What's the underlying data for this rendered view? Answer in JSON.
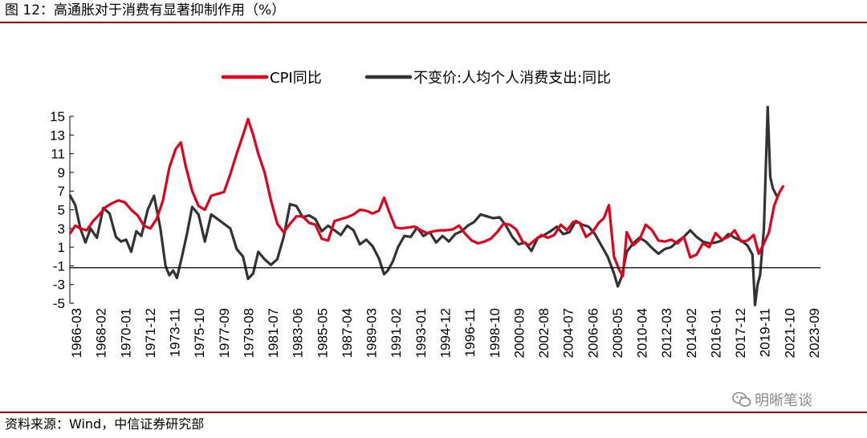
{
  "header": {
    "title": "图 12：高通胀对于消费有显著抑制作用（%）"
  },
  "footer": {
    "source": "资料来源：Wind，中信证券研究部",
    "watermark": "明晰笔谈"
  },
  "colors": {
    "accent": "#c00000",
    "cpi": "#e2001a",
    "consumption": "#333333"
  },
  "chart_data": {
    "type": "line",
    "title": "图 12：高通胀对于消费有显著抑制作用（%）",
    "ylim": [
      -5,
      15
    ],
    "yticks": [
      15,
      13,
      11,
      9,
      7,
      5,
      3,
      1,
      -1,
      -3,
      -5
    ],
    "xlim": [
      1966.17,
      2025.25
    ],
    "xtick_labels": [
      "1966-03",
      "1968-02",
      "1970-01",
      "1971-12",
      "1973-11",
      "1975-10",
      "1977-09",
      "1979-08",
      "1981-07",
      "1983-06",
      "1985-05",
      "1987-04",
      "1989-03",
      "1991-02",
      "1993-01",
      "1994-12",
      "1996-11",
      "1998-10",
      "2000-09",
      "2002-08",
      "2004-07",
      "2006-06",
      "2008-05",
      "2010-04",
      "2012-03",
      "2014-02",
      "2016-01",
      "2017-12",
      "2019-11",
      "2021-10",
      "2023-09"
    ],
    "legend": {
      "placement": "top-center",
      "entries": [
        "CPI同比",
        "不变价:人均个人消费支出:同比"
      ]
    },
    "series": [
      {
        "name": "CPI同比",
        "color": "#e2001a",
        "x": [
          1966.2,
          1966.6,
          1967.0,
          1967.5,
          1968.0,
          1968.5,
          1969.0,
          1969.5,
          1970.0,
          1970.5,
          1971.0,
          1971.5,
          1972.0,
          1972.5,
          1973.0,
          1973.5,
          1974.0,
          1974.5,
          1974.9,
          1975.3,
          1975.8,
          1976.3,
          1976.8,
          1977.3,
          1977.8,
          1978.3,
          1978.8,
          1979.3,
          1979.8,
          1980.2,
          1980.6,
          1981.0,
          1981.5,
          1982.0,
          1982.5,
          1983.0,
          1983.5,
          1984.0,
          1984.5,
          1985.0,
          1985.5,
          1986.0,
          1986.5,
          1987.0,
          1987.5,
          1988.0,
          1988.5,
          1989.0,
          1989.5,
          1990.0,
          1990.5,
          1990.9,
          1991.3,
          1991.8,
          1992.3,
          1992.8,
          1993.3,
          1993.8,
          1994.3,
          1994.8,
          1995.3,
          1995.8,
          1996.3,
          1996.8,
          1997.3,
          1997.8,
          1998.3,
          1998.8,
          1999.3,
          1999.8,
          2000.3,
          2000.8,
          2001.3,
          2001.8,
          2002.3,
          2002.8,
          2003.3,
          2003.8,
          2004.3,
          2004.8,
          2005.3,
          2005.8,
          2006.3,
          2006.8,
          2007.3,
          2007.8,
          2008.2,
          2008.6,
          2009.0,
          2009.4,
          2009.7,
          2010.0,
          2010.5,
          2011.0,
          2011.5,
          2012.0,
          2012.5,
          2013.0,
          2013.5,
          2014.0,
          2014.5,
          2015.0,
          2015.5,
          2016.0,
          2016.5,
          2017.0,
          2017.5,
          2018.0,
          2018.5,
          2019.0,
          2019.5,
          2020.0,
          2020.4,
          2020.8,
          2021.2,
          2021.6,
          2022.0,
          2022.3
        ],
        "values": [
          2.5,
          3.3,
          3.0,
          2.8,
          3.8,
          4.5,
          5.3,
          5.7,
          6.0,
          5.8,
          5.0,
          4.4,
          3.3,
          3.0,
          4.0,
          6.0,
          9.5,
          11.5,
          12.2,
          9.6,
          7.0,
          5.4,
          5.0,
          6.5,
          6.7,
          6.9,
          8.8,
          11.0,
          13.0,
          14.7,
          13.0,
          11.0,
          9.0,
          6.0,
          3.5,
          2.6,
          3.5,
          4.3,
          4.3,
          3.6,
          3.4,
          1.9,
          1.7,
          3.8,
          4.0,
          4.2,
          4.5,
          5.0,
          4.9,
          4.6,
          4.9,
          6.3,
          4.8,
          3.1,
          3.0,
          3.1,
          3.2,
          2.8,
          2.5,
          2.7,
          2.8,
          2.8,
          2.9,
          3.3,
          2.4,
          1.7,
          1.4,
          1.6,
          1.9,
          2.6,
          3.5,
          3.4,
          2.9,
          1.6,
          1.2,
          1.8,
          2.3,
          2.0,
          2.3,
          3.4,
          2.8,
          3.7,
          3.6,
          2.1,
          2.6,
          3.6,
          4.1,
          5.5,
          0.0,
          -1.4,
          -2.1,
          2.6,
          1.2,
          1.8,
          3.4,
          2.8,
          1.7,
          1.6,
          1.8,
          1.4,
          2.1,
          -0.1,
          0.2,
          1.4,
          1.0,
          2.5,
          1.8,
          2.1,
          2.8,
          1.6,
          1.7,
          2.3,
          0.3,
          1.4,
          2.6,
          5.4,
          6.8,
          7.5
        ]
      },
      {
        "name": "不变价:人均个人消费支出:同比",
        "color": "#333333",
        "x": [
          1966.2,
          1966.6,
          1967.0,
          1967.4,
          1967.8,
          1968.3,
          1968.8,
          1969.3,
          1969.8,
          1970.2,
          1970.6,
          1971.0,
          1971.4,
          1971.8,
          1972.3,
          1972.8,
          1973.3,
          1973.7,
          1974.0,
          1974.3,
          1974.6,
          1975.0,
          1975.4,
          1975.8,
          1976.3,
          1976.8,
          1977.3,
          1977.8,
          1978.3,
          1978.8,
          1979.3,
          1979.8,
          1980.2,
          1980.6,
          1981.0,
          1981.5,
          1982.0,
          1982.5,
          1983.0,
          1983.5,
          1984.0,
          1984.5,
          1985.0,
          1985.5,
          1986.0,
          1986.5,
          1987.0,
          1987.5,
          1988.0,
          1988.5,
          1989.0,
          1989.5,
          1990.0,
          1990.5,
          1990.9,
          1991.2,
          1991.6,
          1992.0,
          1992.5,
          1993.0,
          1993.5,
          1994.0,
          1994.5,
          1995.0,
          1995.5,
          1996.0,
          1996.5,
          1997.0,
          1997.5,
          1998.0,
          1998.5,
          1999.0,
          1999.5,
          2000.0,
          2000.5,
          2001.0,
          2001.5,
          2002.0,
          2002.5,
          2003.0,
          2003.5,
          2004.0,
          2004.5,
          2005.0,
          2005.5,
          2006.0,
          2006.5,
          2007.0,
          2007.5,
          2008.0,
          2008.5,
          2009.0,
          2009.3,
          2009.6,
          2010.0,
          2010.5,
          2011.0,
          2011.5,
          2012.0,
          2012.5,
          2013.0,
          2013.5,
          2014.0,
          2014.5,
          2015.0,
          2015.5,
          2016.0,
          2016.5,
          2017.0,
          2017.5,
          2018.0,
          2018.5,
          2019.0,
          2019.5,
          2019.9,
          2020.1,
          2020.3,
          2020.5,
          2020.8,
          2021.1,
          2021.3,
          2021.5,
          2021.8
        ],
        "values": [
          6.5,
          5.5,
          3.0,
          1.5,
          3.0,
          2.0,
          5.2,
          4.6,
          2.1,
          1.6,
          1.8,
          0.5,
          2.7,
          2.2,
          5.0,
          6.5,
          3.0,
          -1.0,
          -2.0,
          -1.5,
          -2.3,
          0.0,
          2.5,
          5.3,
          4.5,
          1.6,
          4.5,
          4.0,
          3.5,
          3.0,
          0.8,
          0.0,
          -2.4,
          -1.8,
          0.5,
          -0.3,
          -0.9,
          -0.3,
          2.1,
          5.6,
          5.4,
          4.2,
          4.4,
          4.0,
          2.7,
          3.3,
          2.8,
          2.3,
          3.3,
          2.8,
          1.3,
          1.8,
          1.1,
          -0.2,
          -1.9,
          -1.5,
          -0.5,
          1.0,
          2.2,
          2.1,
          3.1,
          2.2,
          2.6,
          1.5,
          2.2,
          1.6,
          2.4,
          2.7,
          3.3,
          3.7,
          4.5,
          4.3,
          4.1,
          4.2,
          3.3,
          2.1,
          1.3,
          1.5,
          0.6,
          2.0,
          2.3,
          2.7,
          3.2,
          2.4,
          2.6,
          3.8,
          3.4,
          3.2,
          2.4,
          1.2,
          0.0,
          -1.8,
          -3.2,
          -2.2,
          0.5,
          1.4,
          2.0,
          1.6,
          0.9,
          0.3,
          0.8,
          1.0,
          1.6,
          2.1,
          2.8,
          2.1,
          1.6,
          1.4,
          1.5,
          1.7,
          2.4,
          2.0,
          1.7,
          1.2,
          0.2,
          -5.2,
          -3.0,
          -2.0,
          3.0,
          16.0,
          8.5,
          7.3,
          6.5
        ]
      }
    ]
  }
}
